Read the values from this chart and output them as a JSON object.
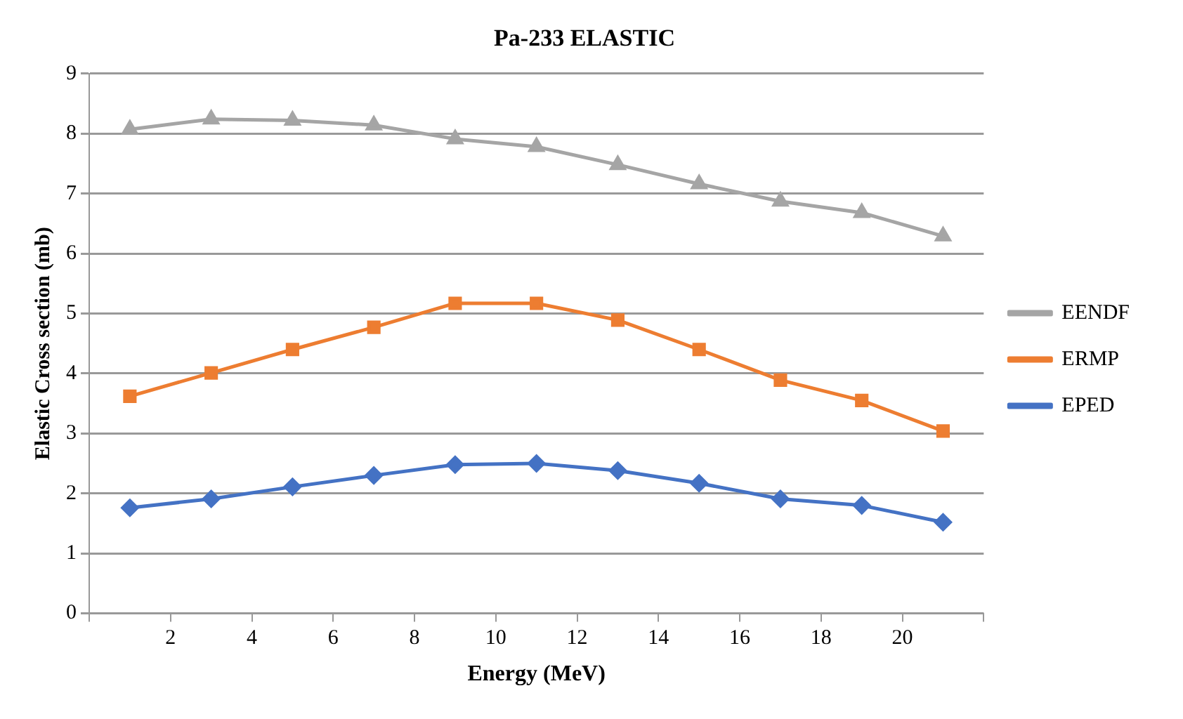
{
  "chart_data": {
    "type": "line",
    "title": "Pa-233 ELASTIC",
    "xlabel": "Energy (MeV)",
    "ylabel": "Elastic Cross section (mb)",
    "x": [
      1,
      3,
      5,
      7,
      9,
      11,
      13,
      15,
      17,
      19,
      21
    ],
    "series": [
      {
        "name": "EENDF",
        "color": "#a5a5a5",
        "marker": "triangle",
        "values": [
          8.07,
          8.24,
          8.22,
          8.14,
          7.91,
          7.78,
          7.48,
          7.16,
          6.87,
          6.68,
          6.29
        ]
      },
      {
        "name": "ERMP",
        "color": "#ed7d31",
        "marker": "square",
        "values": [
          3.62,
          4.01,
          4.4,
          4.77,
          5.17,
          5.17,
          4.89,
          4.4,
          3.89,
          3.55,
          3.04
        ]
      },
      {
        "name": "EPED",
        "color": "#4472c4",
        "marker": "diamond",
        "values": [
          1.76,
          1.91,
          2.11,
          2.3,
          2.48,
          2.5,
          2.38,
          2.17,
          1.91,
          1.8,
          1.52
        ]
      }
    ],
    "xlim": [
      0,
      22
    ],
    "xticks": [
      {
        "value": 0,
        "label": null
      },
      2,
      4,
      6,
      8,
      10,
      12,
      14,
      16,
      18,
      20,
      {
        "value": 22,
        "label": null
      }
    ],
    "ylim": [
      0,
      9
    ],
    "yticks": [
      0,
      1,
      2,
      3,
      4,
      5,
      6,
      7,
      8,
      9
    ],
    "grid": "y",
    "legend": "right",
    "line_style": "solid"
  }
}
